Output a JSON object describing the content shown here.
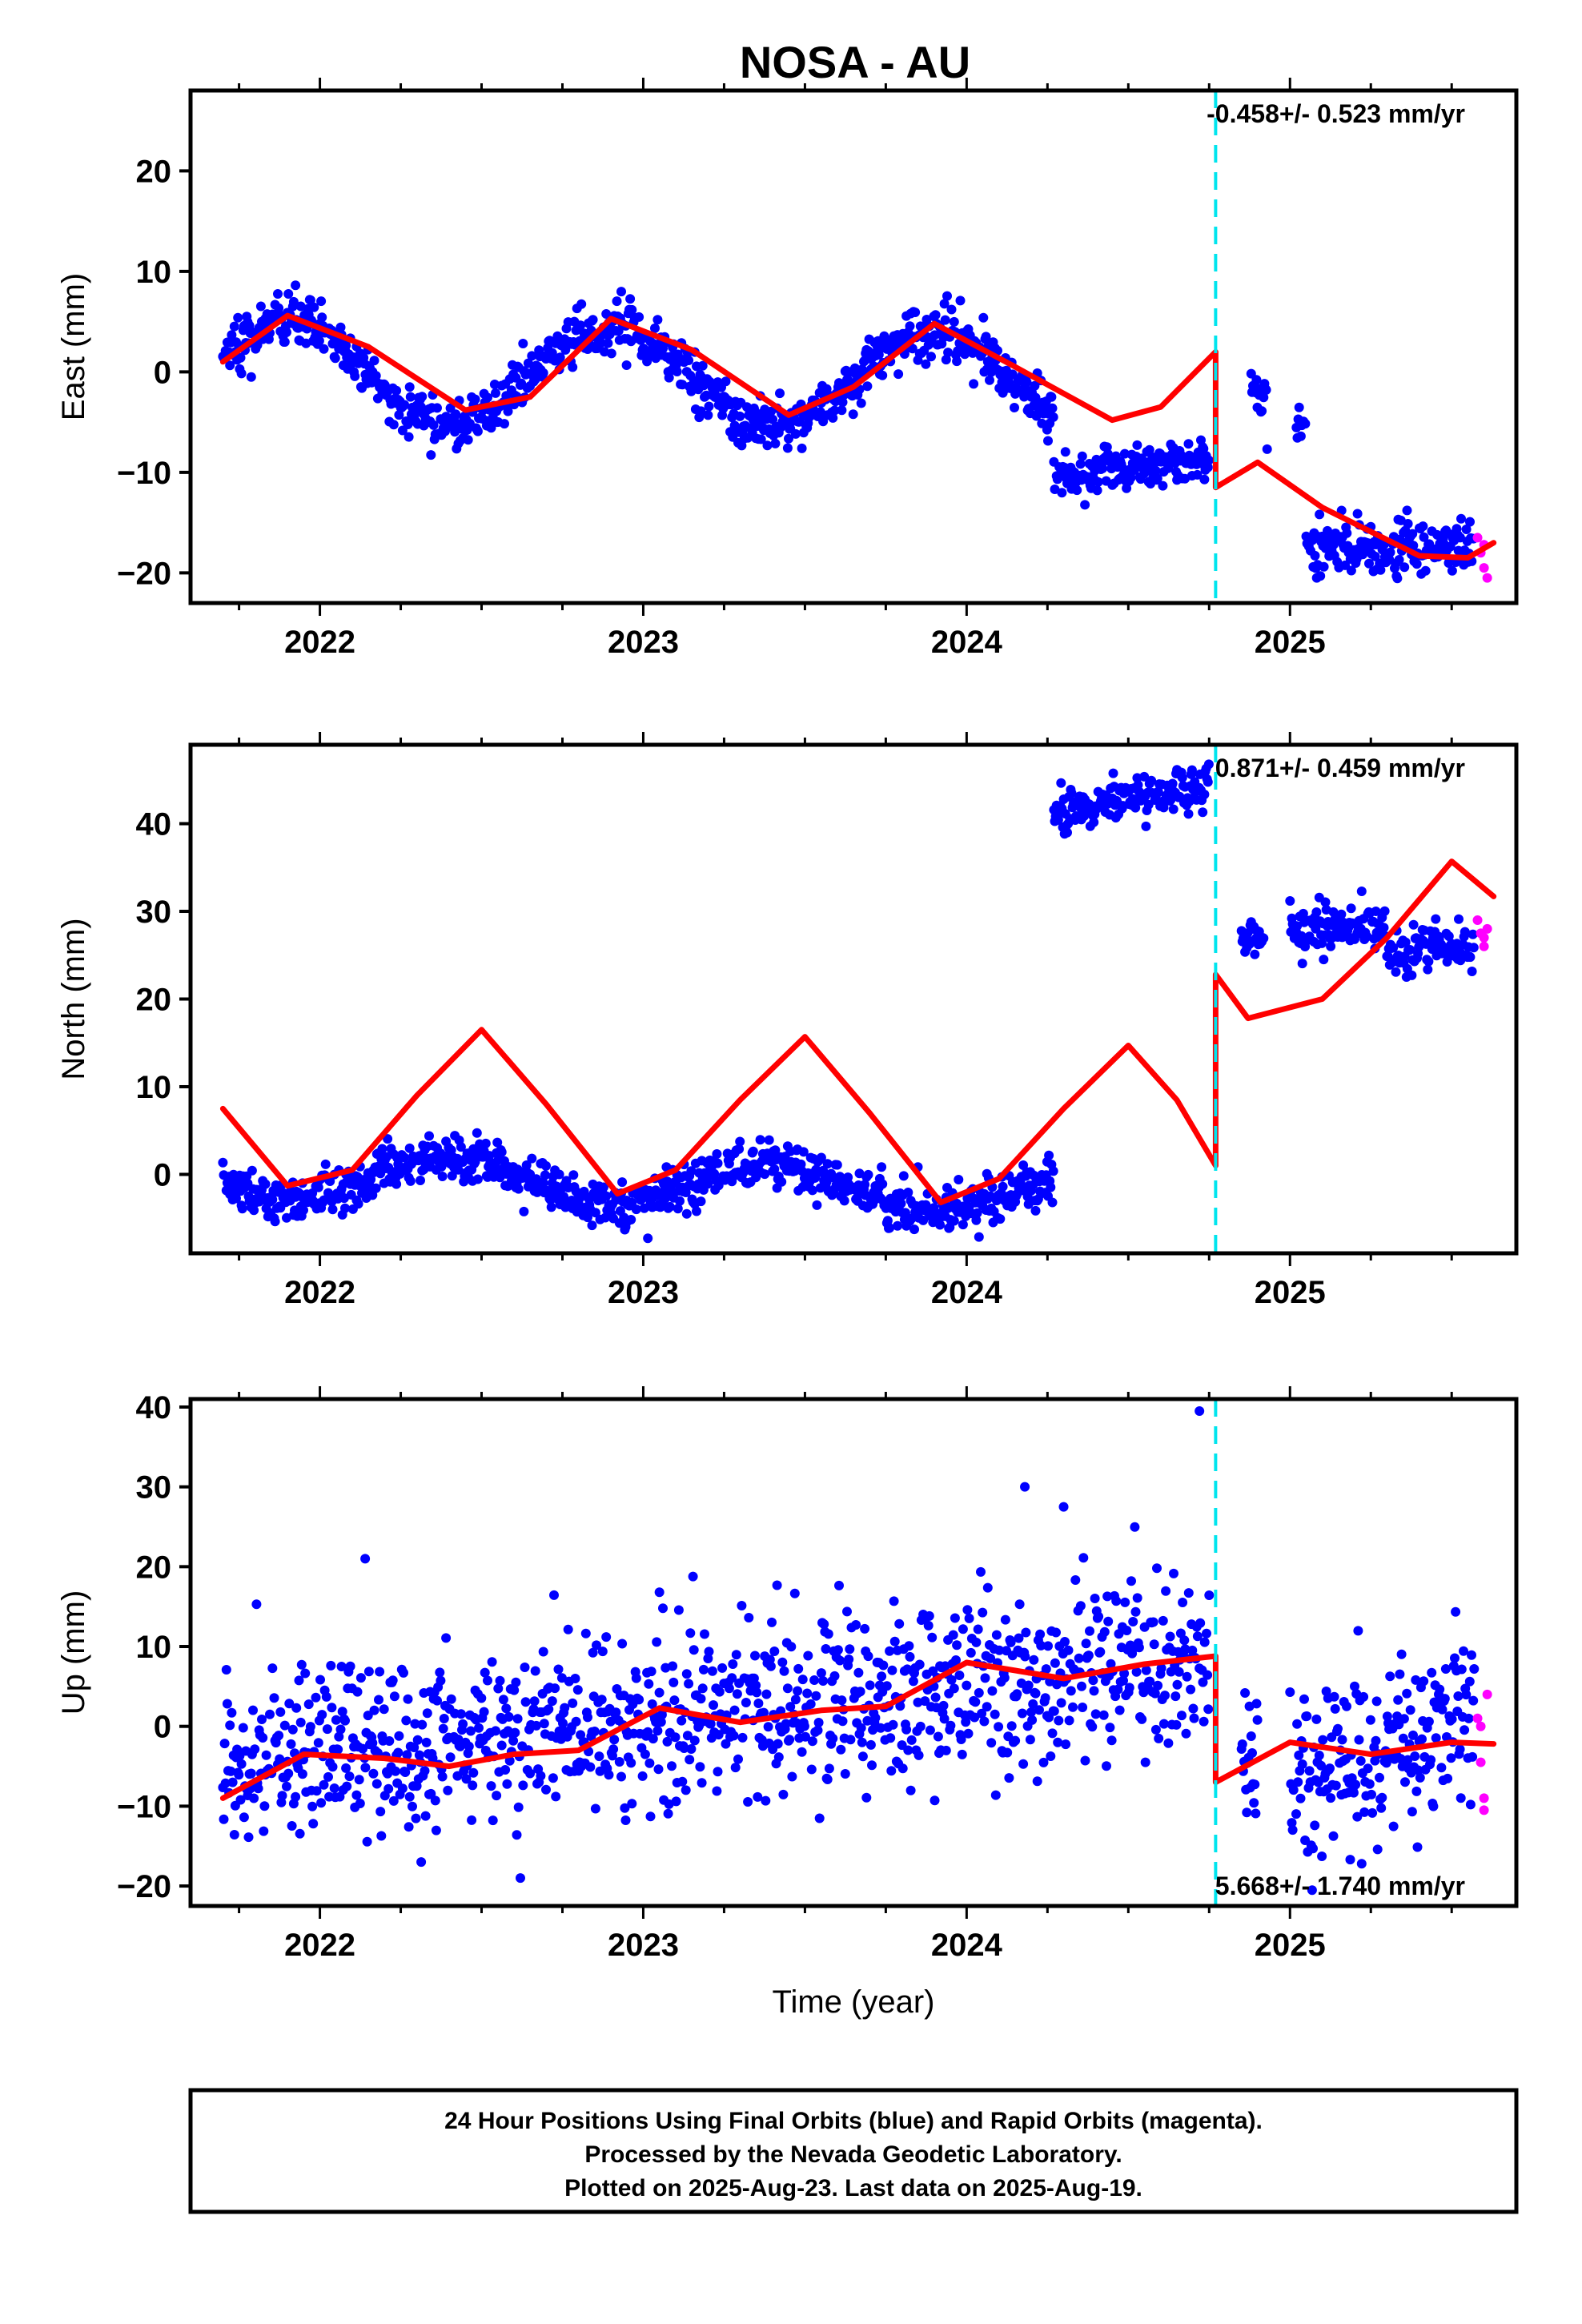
{
  "title": "NOSA - AU",
  "chart_data": [
    {
      "type": "scatter",
      "name": "east",
      "ylabel": "East (mm)",
      "xlabel": "",
      "xlim": [
        2021.6,
        2025.7
      ],
      "ylim": [
        -23,
        28
      ],
      "yticks": [
        -20,
        -10,
        0,
        10,
        20
      ],
      "xticks": [
        2022,
        2023,
        2024,
        2025
      ],
      "rate_label": "-0.458+/- 0.523 mm/yr",
      "rate_position": "top-right",
      "offset_line_x": 2024.77,
      "segments": [
        {
          "t0": 2021.7,
          "t1": 2024.27,
          "offset": 0,
          "amp": 5.0,
          "trend": -0.4,
          "noise": 1.3
        },
        {
          "t0": 2024.27,
          "t1": 2024.75,
          "offset": -10.5,
          "amp": 0,
          "trend": 4.0,
          "noise": 1.0
        },
        {
          "t0": 2024.88,
          "t1": 2024.93,
          "offset": -2.0,
          "amp": 0,
          "trend": 0,
          "noise": 1.8
        },
        {
          "t0": 2025.02,
          "t1": 2025.05,
          "offset": -4.5,
          "amp": 0,
          "trend": 0,
          "noise": 1.5
        },
        {
          "t0": 2025.05,
          "t1": 2025.57,
          "offset": -17.5,
          "amp": 0,
          "trend": 0,
          "noise": 1.4
        }
      ],
      "rapid_points": [
        {
          "x": 2025.58,
          "y": -16.5
        },
        {
          "x": 2025.59,
          "y": -18.0
        },
        {
          "x": 2025.6,
          "y": -19.5
        },
        {
          "x": 2025.61,
          "y": -20.5
        },
        {
          "x": 2025.6,
          "y": -17.2
        }
      ],
      "model": [
        {
          "x": 2021.7,
          "y": 1.0
        },
        {
          "x": 2021.9,
          "y": 5.6
        },
        {
          "x": 2022.15,
          "y": 2.5
        },
        {
          "x": 2022.45,
          "y": -3.8
        },
        {
          "x": 2022.65,
          "y": -2.5
        },
        {
          "x": 2022.9,
          "y": 5.3
        },
        {
          "x": 2023.15,
          "y": 2.2
        },
        {
          "x": 2023.45,
          "y": -4.3
        },
        {
          "x": 2023.65,
          "y": -1.5
        },
        {
          "x": 2023.9,
          "y": 4.8
        },
        {
          "x": 2024.15,
          "y": 0.5
        },
        {
          "x": 2024.45,
          "y": -4.8
        },
        {
          "x": 2024.6,
          "y": -3.5
        },
        {
          "x": 2024.77,
          "y": 2.0
        },
        {
          "x": 2024.77,
          "y": -11.5
        },
        {
          "x": 2024.9,
          "y": -9.0
        },
        {
          "x": 2025.1,
          "y": -13.5
        },
        {
          "x": 2025.4,
          "y": -18.3
        },
        {
          "x": 2025.55,
          "y": -18.5
        },
        {
          "x": 2025.63,
          "y": -17.0
        }
      ]
    },
    {
      "type": "scatter",
      "name": "north",
      "ylabel": "North (mm)",
      "xlabel": "",
      "xlim": [
        2021.6,
        2025.7
      ],
      "ylim": [
        -9,
        49
      ],
      "yticks": [
        0,
        10,
        20,
        30,
        40
      ],
      "xticks": [
        2022,
        2023,
        2024,
        2025
      ],
      "rate_label": "0.871+/- 0.459 mm/yr",
      "rate_position": "top-right",
      "offset_line_x": 2024.77,
      "segments": [
        {
          "t0": 2021.7,
          "t1": 2024.27,
          "offset": 0,
          "amp": 2.5,
          "trend": -0.8,
          "noise": 1.3,
          "phase": 0.5
        },
        {
          "t0": 2024.27,
          "t1": 2024.75,
          "offset": 41.5,
          "amp": 0,
          "trend": 6.0,
          "noise": 1.2
        },
        {
          "t0": 2024.85,
          "t1": 2024.92,
          "offset": 27.0,
          "amp": 0,
          "trend": 0,
          "noise": 1.0
        },
        {
          "t0": 2025.0,
          "t1": 2025.3,
          "offset": 28.0,
          "amp": 0,
          "trend": 0,
          "noise": 1.4
        },
        {
          "t0": 2025.3,
          "t1": 2025.57,
          "offset": 25.5,
          "amp": 0,
          "trend": 3.0,
          "noise": 1.3
        }
      ],
      "rapid_points": [
        {
          "x": 2025.58,
          "y": 29.0
        },
        {
          "x": 2025.59,
          "y": 27.5
        },
        {
          "x": 2025.6,
          "y": 26.0
        },
        {
          "x": 2025.61,
          "y": 28.0
        },
        {
          "x": 2025.6,
          "y": 27.0
        }
      ],
      "model": [
        {
          "x": 2021.7,
          "y": 7.5
        },
        {
          "x": 2021.9,
          "y": -1.3
        },
        {
          "x": 2022.1,
          "y": 0.5
        },
        {
          "x": 2022.3,
          "y": 9.0
        },
        {
          "x": 2022.5,
          "y": 16.5
        },
        {
          "x": 2022.7,
          "y": 8.0
        },
        {
          "x": 2022.92,
          "y": -2.2
        },
        {
          "x": 2023.1,
          "y": 0.5
        },
        {
          "x": 2023.3,
          "y": 8.5
        },
        {
          "x": 2023.5,
          "y": 15.7
        },
        {
          "x": 2023.7,
          "y": 7.0
        },
        {
          "x": 2023.92,
          "y": -3.2
        },
        {
          "x": 2024.1,
          "y": -0.5
        },
        {
          "x": 2024.3,
          "y": 7.5
        },
        {
          "x": 2024.5,
          "y": 14.7
        },
        {
          "x": 2024.65,
          "y": 8.5
        },
        {
          "x": 2024.77,
          "y": 1.0
        },
        {
          "x": 2024.77,
          "y": 22.8
        },
        {
          "x": 2024.87,
          "y": 17.8
        },
        {
          "x": 2025.1,
          "y": 20.0
        },
        {
          "x": 2025.3,
          "y": 27.0
        },
        {
          "x": 2025.5,
          "y": 35.7
        },
        {
          "x": 2025.63,
          "y": 31.7
        }
      ]
    },
    {
      "type": "scatter",
      "name": "up",
      "ylabel": "Up (mm)",
      "xlabel": "Time (year)",
      "xlim": [
        2021.6,
        2025.7
      ],
      "ylim": [
        -22.5,
        41
      ],
      "yticks": [
        -20,
        -10,
        0,
        10,
        20,
        30,
        40
      ],
      "xticks": [
        2022,
        2023,
        2024,
        2025
      ],
      "rate_label": "5.668+/- 1.740 mm/yr",
      "rate_position": "bottom-right",
      "offset_line_x": 2024.77,
      "segments": [
        {
          "t0": 2021.7,
          "t1": 2024.75,
          "offset": -4.5,
          "amp": 0,
          "trend": 4.0,
          "noise": 5.5
        },
        {
          "t0": 2024.85,
          "t1": 2024.9,
          "offset": -8.0,
          "amp": 0,
          "trend": 0,
          "noise": 5.0
        },
        {
          "t0": 2025.0,
          "t1": 2025.57,
          "offset": -6.0,
          "amp": 0,
          "trend": 12.0,
          "noise": 5.5
        }
      ],
      "rapid_points": [
        {
          "x": 2025.58,
          "y": 1.0
        },
        {
          "x": 2025.59,
          "y": -4.5
        },
        {
          "x": 2025.6,
          "y": -9.0
        },
        {
          "x": 2025.6,
          "y": -10.5
        },
        {
          "x": 2025.61,
          "y": 4.0
        },
        {
          "x": 2025.59,
          "y": 0.0
        }
      ],
      "outliers": [
        {
          "x": 2024.72,
          "y": 39.5
        },
        {
          "x": 2024.18,
          "y": 30.0
        },
        {
          "x": 2022.14,
          "y": 21.0
        },
        {
          "x": 2022.62,
          "y": -19.0
        },
        {
          "x": 2023.05,
          "y": 16.8
        },
        {
          "x": 2024.3,
          "y": 27.5
        }
      ],
      "model": [
        {
          "x": 2021.7,
          "y": -9.0
        },
        {
          "x": 2021.95,
          "y": -3.5
        },
        {
          "x": 2022.2,
          "y": -4.0
        },
        {
          "x": 2022.4,
          "y": -5.0
        },
        {
          "x": 2022.6,
          "y": -3.5
        },
        {
          "x": 2022.8,
          "y": -3.0
        },
        {
          "x": 2023.05,
          "y": 2.3
        },
        {
          "x": 2023.3,
          "y": 0.5
        },
        {
          "x": 2023.55,
          "y": 2.0
        },
        {
          "x": 2023.75,
          "y": 2.5
        },
        {
          "x": 2024.0,
          "y": 8.0
        },
        {
          "x": 2024.3,
          "y": 6.0
        },
        {
          "x": 2024.55,
          "y": 7.8
        },
        {
          "x": 2024.77,
          "y": 8.8
        },
        {
          "x": 2024.77,
          "y": -7.0
        },
        {
          "x": 2025.0,
          "y": -2.0
        },
        {
          "x": 2025.25,
          "y": -3.5
        },
        {
          "x": 2025.5,
          "y": -2.0
        },
        {
          "x": 2025.63,
          "y": -2.2
        }
      ]
    }
  ],
  "caption": {
    "line1": "24 Hour Positions Using Final Orbits (blue) and Rapid Orbits (magenta).",
    "line2": "Processed by the Nevada Geodetic Laboratory.",
    "line3": "Plotted on 2025-Aug-23. Last data on 2025-Aug-19."
  },
  "colors": {
    "final_orbits": "#0000ff",
    "rapid_orbits": "#ff00ff",
    "model_fit": "#ff0000",
    "offset_line": "#00e5ee"
  }
}
